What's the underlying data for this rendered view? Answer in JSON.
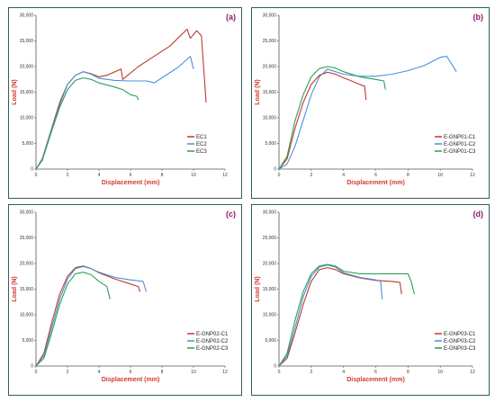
{
  "colors": {
    "red": "#c0392b",
    "blue": "#4a90d9",
    "green": "#2e9e57",
    "frame": "#2f5f5a"
  },
  "chart_data": [
    {
      "type": "line",
      "panel_label": "(a)",
      "xlabel": "Displacement (mm)",
      "ylabel": "Load (N)",
      "xlim": [
        0,
        12
      ],
      "ylim": [
        0,
        30000
      ],
      "xticks": [
        "0",
        "2",
        "4",
        "6",
        "8",
        "10",
        "12"
      ],
      "yticks": [
        "0",
        "5,000",
        "10,000",
        "15,000",
        "20,000",
        "25,000",
        "30,000"
      ],
      "legend_position": "bottom-right",
      "series": [
        {
          "name": "EC1",
          "color": "red",
          "points": [
            [
              0,
              0
            ],
            [
              0.4,
              2000
            ],
            [
              1,
              8000
            ],
            [
              1.5,
              13000
            ],
            [
              2,
              16500
            ],
            [
              2.5,
              18300
            ],
            [
              3,
              19000
            ],
            [
              3.5,
              18600
            ],
            [
              4,
              18000
            ],
            [
              4.5,
              18300
            ],
            [
              5.4,
              19500
            ],
            [
              5.5,
              17500
            ],
            [
              6.5,
              20000
            ],
            [
              7.5,
              22000
            ],
            [
              8.5,
              24000
            ],
            [
              9.6,
              27300
            ],
            [
              9.8,
              25500
            ],
            [
              10.2,
              27000
            ],
            [
              10.5,
              26000
            ],
            [
              10.8,
              13000
            ]
          ]
        },
        {
          "name": "EC2",
          "color": "blue",
          "points": [
            [
              0,
              0
            ],
            [
              0.4,
              1800
            ],
            [
              1,
              7800
            ],
            [
              1.5,
              12500
            ],
            [
              2,
              16500
            ],
            [
              2.5,
              18300
            ],
            [
              3,
              19000
            ],
            [
              3.5,
              18500
            ],
            [
              4,
              17700
            ],
            [
              5,
              17300
            ],
            [
              6,
              17200
            ],
            [
              7,
              17200
            ],
            [
              7.3,
              17000
            ],
            [
              7.5,
              16800
            ],
            [
              8,
              17800
            ],
            [
              9,
              19800
            ],
            [
              9.8,
              22000
            ],
            [
              10,
              19500
            ]
          ]
        },
        {
          "name": "EC3",
          "color": "green",
          "points": [
            [
              0,
              0
            ],
            [
              0.4,
              1700
            ],
            [
              1,
              7500
            ],
            [
              1.5,
              12000
            ],
            [
              2,
              15500
            ],
            [
              2.5,
              17300
            ],
            [
              3,
              17800
            ],
            [
              3.5,
              17500
            ],
            [
              4,
              16800
            ],
            [
              5,
              16000
            ],
            [
              5.5,
              15500
            ],
            [
              6,
              14500
            ],
            [
              6.4,
              14200
            ],
            [
              6.5,
              13500
            ]
          ]
        }
      ]
    },
    {
      "type": "line",
      "panel_label": "(b)",
      "xlabel": "Displacement (mm)",
      "ylabel": "Load (N)",
      "xlim": [
        0,
        12
      ],
      "ylim": [
        0,
        30000
      ],
      "xticks": [
        "0",
        "2",
        "4",
        "6",
        "8",
        "10",
        "12"
      ],
      "yticks": [
        "0",
        "5,000",
        "10,000",
        "15,000",
        "20,000",
        "25,000",
        "30,000"
      ],
      "legend_position": "bottom-right",
      "series": [
        {
          "name": "E-GNP01-C1",
          "color": "red",
          "points": [
            [
              0,
              0
            ],
            [
              0.5,
              2000
            ],
            [
              1,
              8000
            ],
            [
              1.5,
              13000
            ],
            [
              2,
              16500
            ],
            [
              2.5,
              18300
            ],
            [
              3,
              18900
            ],
            [
              3.5,
              18500
            ],
            [
              4,
              17800
            ],
            [
              4.5,
              17200
            ],
            [
              5,
              16500
            ],
            [
              5.3,
              16200
            ],
            [
              5.4,
              13500
            ]
          ]
        },
        {
          "name": "E-GNP01-C2",
          "color": "blue",
          "points": [
            [
              0,
              0
            ],
            [
              0.5,
              1000
            ],
            [
              1,
              4500
            ],
            [
              1.5,
              9500
            ],
            [
              2,
              14500
            ],
            [
              2.5,
              18000
            ],
            [
              3,
              19500
            ],
            [
              3.5,
              19000
            ],
            [
              4,
              18500
            ],
            [
              5,
              18100
            ],
            [
              6,
              18100
            ],
            [
              7,
              18500
            ],
            [
              8,
              19200
            ],
            [
              9,
              20200
            ],
            [
              10,
              21800
            ],
            [
              10.4,
              22000
            ],
            [
              10.7,
              20500
            ],
            [
              11,
              19000
            ]
          ]
        },
        {
          "name": "E-GNP01-C3",
          "color": "green",
          "points": [
            [
              0,
              0
            ],
            [
              0.5,
              2500
            ],
            [
              1,
              9500
            ],
            [
              1.5,
              14500
            ],
            [
              2,
              18000
            ],
            [
              2.5,
              19600
            ],
            [
              3,
              20000
            ],
            [
              3.5,
              19700
            ],
            [
              4,
              19000
            ],
            [
              5,
              18000
            ],
            [
              6,
              17500
            ],
            [
              6.5,
              17200
            ],
            [
              6.6,
              15500
            ]
          ]
        }
      ]
    },
    {
      "type": "line",
      "panel_label": "(c)",
      "xlabel": "Displacement (mm)",
      "ylabel": "Load (N)",
      "xlim": [
        0,
        12
      ],
      "ylim": [
        0,
        30000
      ],
      "xticks": [
        "0",
        "2",
        "4",
        "6",
        "8",
        "10",
        "12"
      ],
      "yticks": [
        "0",
        "5,000",
        "10,000",
        "15,000",
        "20,000",
        "25,000",
        "30,000"
      ],
      "legend_position": "bottom-right",
      "series": [
        {
          "name": "E-GNP02-C1",
          "color": "red",
          "points": [
            [
              0,
              0
            ],
            [
              0.5,
              2500
            ],
            [
              1,
              8500
            ],
            [
              1.5,
              14000
            ],
            [
              2,
              17500
            ],
            [
              2.5,
              19200
            ],
            [
              3,
              19500
            ],
            [
              3.5,
              19000
            ],
            [
              4,
              18200
            ],
            [
              5,
              17000
            ],
            [
              6,
              16000
            ],
            [
              6.5,
              15500
            ],
            [
              6.6,
              14500
            ]
          ]
        },
        {
          "name": "E-GNP02-C2",
          "color": "blue",
          "points": [
            [
              0,
              0
            ],
            [
              0.5,
              2000
            ],
            [
              1,
              7500
            ],
            [
              1.5,
              13000
            ],
            [
              2,
              17000
            ],
            [
              2.5,
              19000
            ],
            [
              3,
              19400
            ],
            [
              3.5,
              19000
            ],
            [
              4,
              18300
            ],
            [
              5,
              17300
            ],
            [
              6,
              16800
            ],
            [
              6.8,
              16500
            ],
            [
              7,
              14500
            ]
          ]
        },
        {
          "name": "E-GNP02-C3",
          "color": "green",
          "points": [
            [
              0,
              0
            ],
            [
              0.5,
              1500
            ],
            [
              1,
              6500
            ],
            [
              1.5,
              12000
            ],
            [
              2,
              16000
            ],
            [
              2.5,
              18000
            ],
            [
              3,
              18300
            ],
            [
              3.5,
              17800
            ],
            [
              4,
              16500
            ],
            [
              4.5,
              15500
            ],
            [
              4.7,
              13000
            ]
          ]
        }
      ]
    },
    {
      "type": "line",
      "panel_label": "(d)",
      "xlabel": "Displacement (mm)",
      "ylabel": "Load (N)",
      "xlim": [
        0,
        12
      ],
      "ylim": [
        0,
        30000
      ],
      "xticks": [
        "0",
        "2",
        "4",
        "6",
        "8",
        "10",
        "12"
      ],
      "yticks": [
        "0",
        "5,000",
        "10,000",
        "15,000",
        "20,000",
        "25,000",
        "30,000"
      ],
      "legend_position": "bottom-right",
      "series": [
        {
          "name": "E-GNP03-C1",
          "color": "red",
          "points": [
            [
              0,
              0
            ],
            [
              0.5,
              1500
            ],
            [
              1,
              6500
            ],
            [
              1.5,
              12000
            ],
            [
              2,
              16500
            ],
            [
              2.5,
              18800
            ],
            [
              3,
              19200
            ],
            [
              3.5,
              18800
            ],
            [
              4,
              18000
            ],
            [
              5,
              17200
            ],
            [
              6,
              16700
            ],
            [
              7,
              16500
            ],
            [
              7.5,
              16300
            ],
            [
              7.6,
              14000
            ]
          ]
        },
        {
          "name": "E-GNP03-C2",
          "color": "blue",
          "points": [
            [
              0,
              0
            ],
            [
              0.5,
              2000
            ],
            [
              1,
              7500
            ],
            [
              1.5,
              13500
            ],
            [
              2,
              17500
            ],
            [
              2.5,
              19300
            ],
            [
              3,
              19700
            ],
            [
              3.5,
              19300
            ],
            [
              4,
              18200
            ],
            [
              5,
              17300
            ],
            [
              6,
              16800
            ],
            [
              6.3,
              16500
            ],
            [
              6.4,
              13000
            ]
          ]
        },
        {
          "name": "E-GNP03-C3",
          "color": "green",
          "points": [
            [
              0,
              0
            ],
            [
              0.5,
              2500
            ],
            [
              1,
              9000
            ],
            [
              1.5,
              14500
            ],
            [
              2,
              18000
            ],
            [
              2.5,
              19500
            ],
            [
              3,
              19800
            ],
            [
              3.5,
              19500
            ],
            [
              4,
              18500
            ],
            [
              5,
              18000
            ],
            [
              6,
              18000
            ],
            [
              7,
              18000
            ],
            [
              8,
              18000
            ],
            [
              8.2,
              16500
            ],
            [
              8.4,
              14000
            ]
          ]
        }
      ]
    }
  ]
}
